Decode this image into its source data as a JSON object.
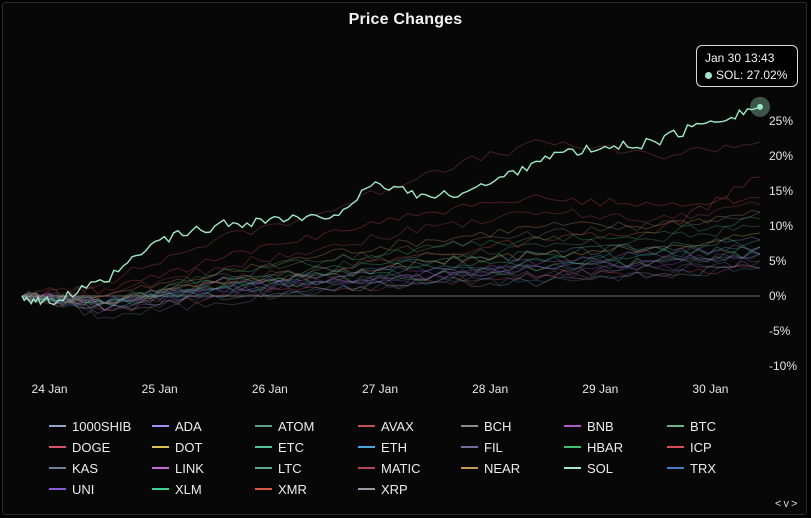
{
  "chart_data": {
    "type": "line",
    "title": "Price Changes",
    "xlabel": "",
    "ylabel": "",
    "x_ticks": [
      "24 Jan",
      "25 Jan",
      "26 Jan",
      "27 Jan",
      "28 Jan",
      "29 Jan",
      "30 Jan"
    ],
    "x_range": [
      -0.25,
      6.45
    ],
    "y_ticks": [
      "-10%",
      "-5%",
      "0%",
      "5%",
      "10%",
      "15%",
      "20%",
      "25%"
    ],
    "y_tick_values": [
      -10,
      -5,
      0,
      5,
      10,
      15,
      20,
      25
    ],
    "ylim": [
      -10,
      28
    ],
    "highlight_series": "SOL",
    "series": [
      {
        "name": "1000SHIB",
        "color": "#8fa6c9",
        "x": [
          -0.25,
          0.5,
          1.5,
          2.5,
          3.5,
          4.5,
          5.5,
          6.45
        ],
        "y": [
          0,
          -2,
          2,
          3,
          5,
          6,
          7,
          8
        ]
      },
      {
        "name": "ADA",
        "color": "#a78bfa",
        "x": [
          -0.25,
          0.5,
          1.5,
          2.5,
          3.5,
          4.5,
          5.5,
          6.45
        ],
        "y": [
          0,
          -2,
          1,
          2,
          3,
          4,
          5,
          6
        ]
      },
      {
        "name": "ATOM",
        "color": "#5e9e84",
        "x": [
          -0.25,
          0.5,
          1.5,
          2.5,
          3.5,
          4.5,
          5.5,
          6.45
        ],
        "y": [
          0,
          -1,
          2,
          4,
          6,
          7,
          8,
          10
        ]
      },
      {
        "name": "AVAX",
        "color": "#c0524e",
        "x": [
          -0.25,
          0.5,
          1.5,
          2.5,
          3.5,
          4.5,
          5.5,
          6.45
        ],
        "y": [
          0,
          2,
          8,
          12,
          18,
          22,
          20,
          22
        ]
      },
      {
        "name": "BCH",
        "color": "#8a8a8a",
        "x": [
          -0.25,
          0.5,
          1.5,
          2.5,
          3.5,
          4.5,
          5.5,
          6.45
        ],
        "y": [
          0,
          -1,
          3,
          5,
          7,
          9,
          10,
          12
        ]
      },
      {
        "name": "BNB",
        "color": "#b05ac9",
        "x": [
          -0.25,
          0.5,
          1.5,
          2.5,
          3.5,
          4.5,
          5.5,
          6.45
        ],
        "y": [
          0,
          -1,
          1,
          2,
          3,
          3,
          4,
          5
        ]
      },
      {
        "name": "BTC",
        "color": "#6bb38a",
        "x": [
          -0.25,
          0.5,
          1.5,
          2.5,
          3.5,
          4.5,
          5.5,
          6.45
        ],
        "y": [
          0,
          -1,
          1,
          2,
          3,
          4,
          5,
          6
        ]
      },
      {
        "name": "DOGE",
        "color": "#d2556b",
        "x": [
          -0.25,
          0.5,
          1.5,
          2.5,
          3.5,
          4.5,
          5.5,
          6.45
        ],
        "y": [
          0,
          -2,
          0,
          1,
          2,
          3,
          3,
          4
        ]
      },
      {
        "name": "DOT",
        "color": "#d9c25a",
        "x": [
          -0.25,
          0.5,
          1.5,
          2.5,
          3.5,
          4.5,
          5.5,
          6.45
        ],
        "y": [
          0,
          -1,
          2,
          3,
          5,
          6,
          7,
          9
        ]
      },
      {
        "name": "ETC",
        "color": "#4fc3a1",
        "x": [
          -0.25,
          0.5,
          1.5,
          2.5,
          3.5,
          4.5,
          5.5,
          6.45
        ],
        "y": [
          0,
          -1,
          2,
          4,
          5,
          6,
          7,
          8
        ]
      },
      {
        "name": "ETH",
        "color": "#4aa3d9",
        "x": [
          -0.25,
          0.5,
          1.5,
          2.5,
          3.5,
          4.5,
          5.5,
          6.45
        ],
        "y": [
          0,
          -1,
          1,
          3,
          4,
          5,
          6,
          7
        ]
      },
      {
        "name": "FIL",
        "color": "#6f6f9e",
        "x": [
          -0.25,
          0.5,
          1.5,
          2.5,
          3.5,
          4.5,
          5.5,
          6.45
        ],
        "y": [
          0,
          -2,
          0,
          2,
          3,
          4,
          5,
          6
        ]
      },
      {
        "name": "HBAR",
        "color": "#3fbf6f",
        "x": [
          -0.25,
          0.5,
          1.5,
          2.5,
          3.5,
          4.5,
          5.5,
          6.45
        ],
        "y": [
          0,
          -1,
          3,
          5,
          7,
          8,
          9,
          11
        ]
      },
      {
        "name": "ICP",
        "color": "#d94a5a",
        "x": [
          -0.25,
          0.5,
          1.5,
          2.5,
          3.5,
          4.5,
          5.5,
          6.45
        ],
        "y": [
          0,
          1,
          5,
          9,
          12,
          14,
          13,
          14
        ]
      },
      {
        "name": "KAS",
        "color": "#6e7f99",
        "x": [
          -0.25,
          0.5,
          1.5,
          2.5,
          3.5,
          4.5,
          5.5,
          6.45
        ],
        "y": [
          0,
          -3,
          -1,
          1,
          2,
          3,
          4,
          5
        ]
      },
      {
        "name": "LINK",
        "color": "#c96ad9",
        "x": [
          -0.25,
          0.5,
          1.5,
          2.5,
          3.5,
          4.5,
          5.5,
          6.45
        ],
        "y": [
          0,
          -1,
          2,
          3,
          4,
          5,
          6,
          7
        ]
      },
      {
        "name": "LTC",
        "color": "#5aa98a",
        "x": [
          -0.25,
          0.5,
          1.5,
          2.5,
          3.5,
          4.5,
          5.5,
          6.45
        ],
        "y": [
          0,
          -1,
          1,
          2,
          3,
          4,
          5,
          6
        ]
      },
      {
        "name": "MATIC",
        "color": "#b0485a",
        "x": [
          -0.25,
          0.5,
          1.5,
          2.5,
          3.5,
          4.5,
          5.5,
          6.45
        ],
        "y": [
          0,
          0,
          4,
          7,
          10,
          12,
          11,
          13
        ]
      },
      {
        "name": "NEAR",
        "color": "#c9955a",
        "x": [
          -0.25,
          0.5,
          1.5,
          2.5,
          3.5,
          4.5,
          5.5,
          6.45
        ],
        "y": [
          0,
          0,
          3,
          6,
          8,
          10,
          10,
          12
        ]
      },
      {
        "name": "SOL",
        "color": "#9fe7c8",
        "x": [
          -0.25,
          0.0,
          0.5,
          1.0,
          1.5,
          2.0,
          2.5,
          3.0,
          3.5,
          4.0,
          4.5,
          5.0,
          5.5,
          6.0,
          6.45
        ],
        "y": [
          0,
          -1,
          2,
          8,
          10,
          11,
          11,
          16,
          14,
          16,
          20,
          21,
          22,
          25,
          27.02
        ]
      },
      {
        "name": "TRX",
        "color": "#3f7fbf",
        "x": [
          -0.25,
          0.5,
          1.5,
          2.5,
          3.5,
          4.5,
          5.5,
          6.45
        ],
        "y": [
          0,
          -1,
          0,
          1,
          2,
          2,
          3,
          4
        ]
      },
      {
        "name": "UNI",
        "color": "#8a5ad9",
        "x": [
          -0.25,
          0.5,
          1.5,
          2.5,
          3.5,
          4.5,
          5.5,
          6.45
        ],
        "y": [
          0,
          -1,
          1,
          2,
          3,
          4,
          5,
          6
        ]
      },
      {
        "name": "XLM",
        "color": "#3fcf8f",
        "x": [
          -0.25,
          0.5,
          1.5,
          2.5,
          3.5,
          4.5,
          5.5,
          6.45
        ],
        "y": [
          0,
          -1,
          1,
          3,
          4,
          5,
          6,
          7
        ]
      },
      {
        "name": "XMR",
        "color": "#d95a4a",
        "x": [
          -0.25,
          0.5,
          1.5,
          2.5,
          3.5,
          4.5,
          5.5,
          6.45
        ],
        "y": [
          0,
          -1,
          2,
          4,
          6,
          8,
          9,
          17
        ]
      },
      {
        "name": "XRP",
        "color": "#9a9aa8",
        "x": [
          -0.25,
          0.5,
          1.5,
          2.5,
          3.5,
          4.5,
          5.5,
          6.45
        ],
        "y": [
          0,
          -2,
          0,
          1,
          2,
          2,
          3,
          4
        ]
      }
    ]
  },
  "tooltip": {
    "time": "Jan 30 13:43",
    "label": "SOL: 27.02%"
  },
  "pager": {
    "prev": "<",
    "next": "v",
    "close": ">"
  }
}
